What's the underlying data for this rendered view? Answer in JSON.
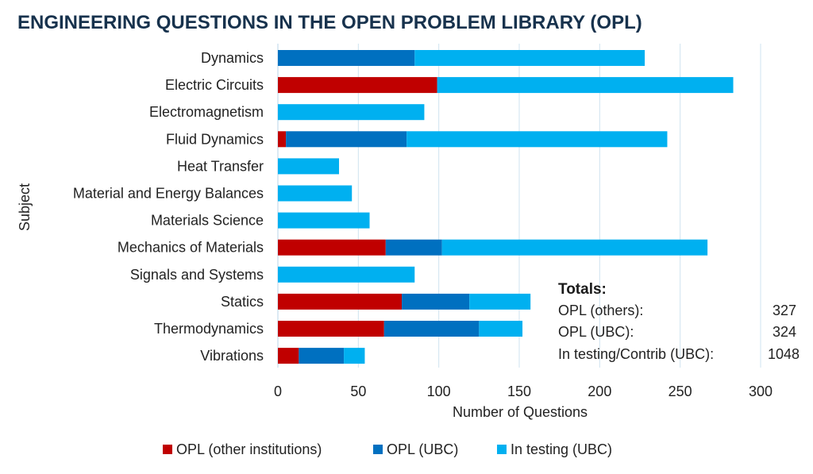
{
  "chart_data": {
    "type": "bar",
    "orientation": "horizontal",
    "stacked": true,
    "title": "ENGINEERING QUESTIONS IN THE OPEN PROBLEM LIBRARY (OPL)",
    "xlabel": "Number of Questions",
    "ylabel": "Subject",
    "xlim": [
      0,
      300
    ],
    "xticks": [
      0,
      50,
      100,
      150,
      200,
      250,
      300
    ],
    "grid": "vertical",
    "legend_position": "bottom",
    "categories": [
      "Dynamics",
      "Electric Circuits",
      "Electromagnetism",
      "Fluid Dynamics",
      "Heat Transfer",
      "Material and Energy Balances",
      "Materials Science",
      "Mechanics of Materials",
      "Signals and Systems",
      "Statics",
      "Thermodynamics",
      "Vibrations"
    ],
    "series": [
      {
        "name": "OPL (other institutions)",
        "color": "#c00000",
        "values": [
          0,
          99,
          0,
          5,
          0,
          0,
          0,
          67,
          0,
          77,
          66,
          13
        ]
      },
      {
        "name": "OPL (UBC)",
        "color": "#0070c0",
        "values": [
          85,
          0,
          0,
          75,
          0,
          0,
          0,
          35,
          0,
          42,
          59,
          28
        ]
      },
      {
        "name": "In testing (UBC)",
        "color": "#00b0f0",
        "values": [
          143,
          184,
          91,
          162,
          38,
          46,
          57,
          165,
          85,
          38,
          27,
          13
        ]
      }
    ],
    "annotation": {
      "heading": "Totals:",
      "rows": [
        {
          "label": "OPL (others):",
          "value": "327"
        },
        {
          "label": "OPL (UBC):",
          "value": "324"
        },
        {
          "label": "In testing/Contrib (UBC):",
          "value": "1048"
        }
      ]
    }
  }
}
